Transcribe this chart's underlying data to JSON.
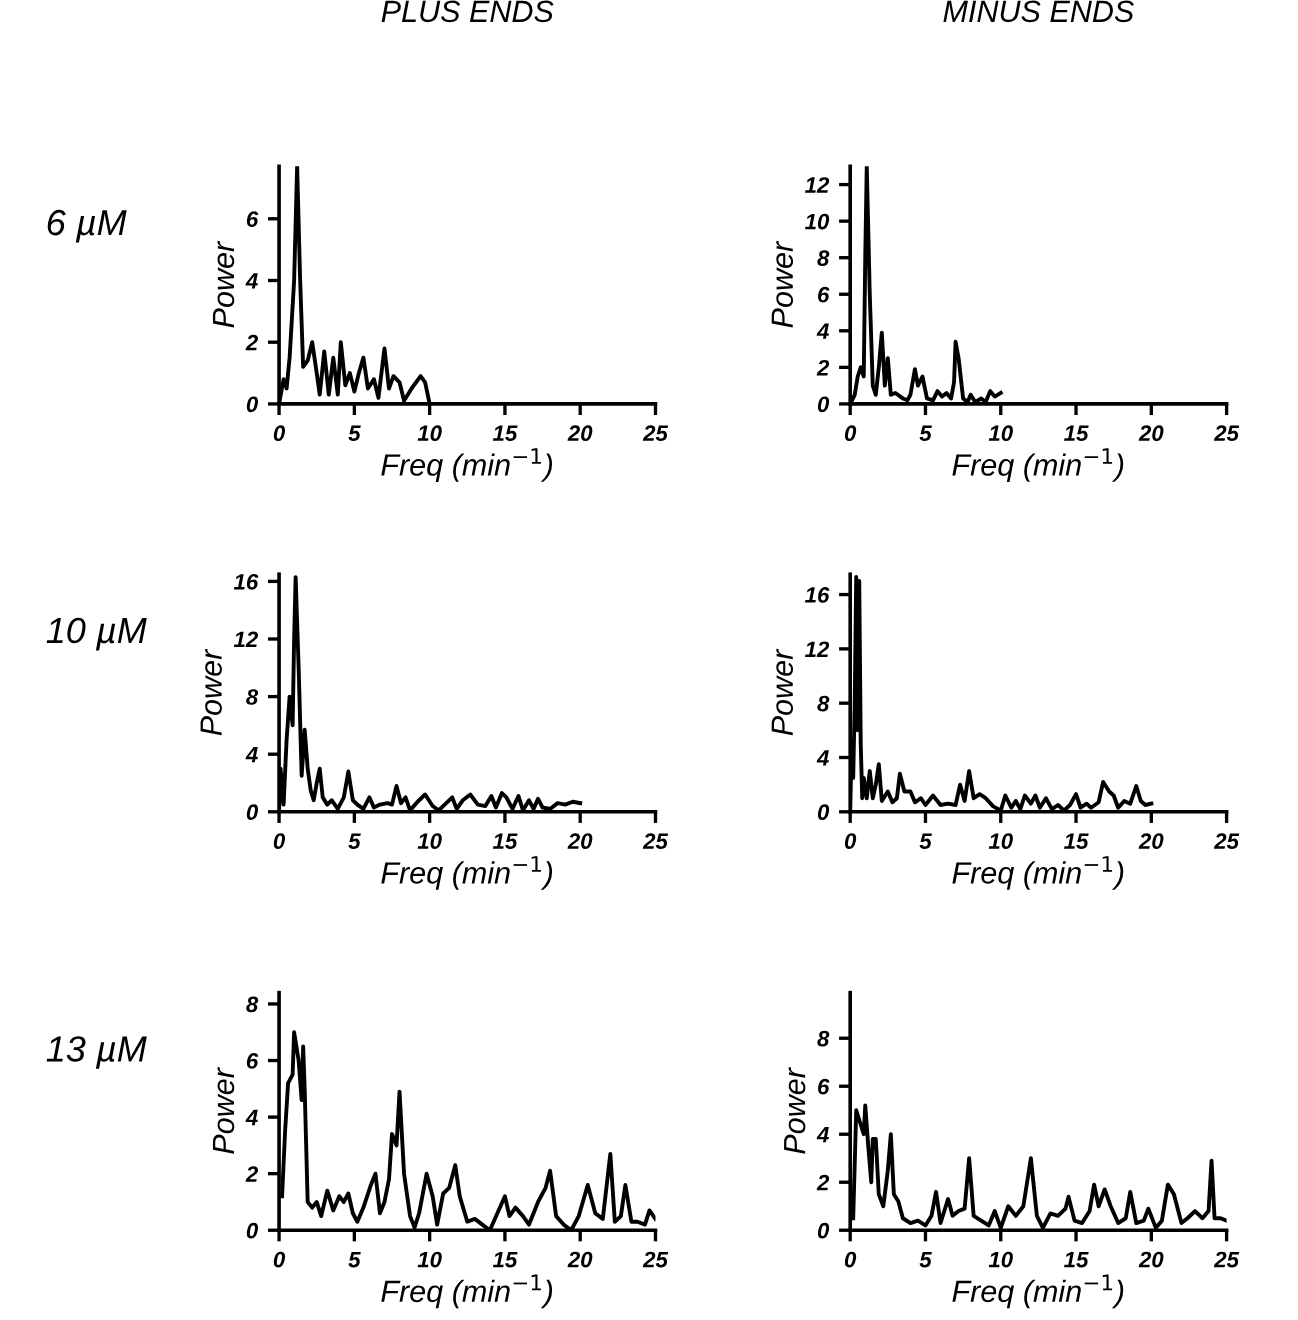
{
  "chart_data": [
    {
      "type": "line",
      "title": "PLUS ENDS",
      "annotations": [
        "6 µM"
      ],
      "xlabel": "Freq (min$^{−1}$)",
      "ylabel": "Power",
      "xlim": [
        0,
        25
      ],
      "xticks": [
        0,
        5,
        10,
        15,
        20,
        25
      ],
      "ylim": [
        0,
        7.7
      ],
      "yticks": [
        0,
        2,
        4,
        6
      ],
      "series": [
        {
          "color": "#000000",
          "x": [
            0,
            0.3,
            0.5,
            0.7,
            1.0,
            1.2,
            1.4,
            1.6,
            1.9,
            2.2,
            2.5,
            2.7,
            3.0,
            3.3,
            3.6,
            3.9,
            4.1,
            4.4,
            4.7,
            5.0,
            5.3,
            5.6,
            5.9,
            6.3,
            6.6,
            7.0,
            7.3,
            7.6,
            8.0,
            8.3,
            8.8,
            9.4,
            9.7,
            10.0
          ],
          "values": [
            0,
            0.8,
            0.5,
            1.5,
            4,
            7.7,
            4,
            1.2,
            1.4,
            2.0,
            1.0,
            0.3,
            1.7,
            0.3,
            1.5,
            0.3,
            2.0,
            0.6,
            1.0,
            0.4,
            1.0,
            1.5,
            0.5,
            0.8,
            0.2,
            1.8,
            0.5,
            0.9,
            0.7,
            0.1,
            0.5,
            0.9,
            0.7,
            0
          ]
        }
      ]
    },
    {
      "type": "line",
      "title": "MINUS ENDS",
      "xlabel": "Freq (min$^{−1}$)",
      "ylabel": "Power",
      "xlim": [
        0,
        25
      ],
      "xticks": [
        0,
        5,
        10,
        15,
        20,
        25
      ],
      "ylim": [
        0,
        13
      ],
      "yticks": [
        0,
        2,
        4,
        6,
        8,
        10,
        12
      ],
      "series": [
        {
          "color": "#000000",
          "x": [
            0,
            0.3,
            0.5,
            0.7,
            0.9,
            1.0,
            1.1,
            1.3,
            1.5,
            1.7,
            1.9,
            2.1,
            2.3,
            2.5,
            2.7,
            3.0,
            3.5,
            3.8,
            4.0,
            4.3,
            4.5,
            4.8,
            5.1,
            5.5,
            5.8,
            6.1,
            6.4,
            6.7,
            6.9,
            7.0,
            7.2,
            7.5,
            7.8,
            8.0,
            8.3,
            8.7,
            9.0,
            9.3,
            9.6,
            10.0
          ],
          "values": [
            0,
            0.5,
            1.5,
            2,
            1.5,
            8,
            13,
            6,
            1,
            0.5,
            2,
            3.9,
            1,
            2.5,
            0.5,
            0.6,
            0.3,
            0.2,
            0.5,
            1.9,
            1.0,
            1.5,
            0.3,
            0.2,
            0.7,
            0.4,
            0.6,
            0.3,
            1.2,
            3.4,
            2.5,
            0.3,
            0.1,
            0.5,
            0.1,
            0.3,
            0.1,
            0.7,
            0.4,
            0.6
          ]
        }
      ]
    },
    {
      "type": "line",
      "annotations": [
        "10 µM"
      ],
      "xlabel": "Freq (min$^{−1}$)",
      "ylabel": "Power",
      "xlim": [
        0,
        25
      ],
      "xticks": [
        0,
        5,
        10,
        15,
        20,
        25
      ],
      "ylim": [
        0,
        16.5
      ],
      "yticks": [
        0,
        4,
        8,
        12,
        16
      ],
      "series": [
        {
          "color": "#000000",
          "x": [
            0,
            0.1,
            0.3,
            0.5,
            0.7,
            0.9,
            1.0,
            1.1,
            1.3,
            1.5,
            1.7,
            1.9,
            2.1,
            2.3,
            2.5,
            2.7,
            2.9,
            3.2,
            3.5,
            3.9,
            4.3,
            4.6,
            4.9,
            5.2,
            5.6,
            6.0,
            6.3,
            6.7,
            7.2,
            7.5,
            7.8,
            8.1,
            8.4,
            8.7,
            9.2,
            9.7,
            10.2,
            10.6,
            11.0,
            11.5,
            11.8,
            12.2,
            12.7,
            13.2,
            13.7,
            14.1,
            14.4,
            14.8,
            15.1,
            15.5,
            15.9,
            16.2,
            16.6,
            16.9,
            17.2,
            17.5,
            18.0,
            18.5,
            19.0,
            19.5,
            20.0
          ],
          "values": [
            0,
            3,
            0.5,
            5,
            8,
            6,
            12,
            16.3,
            10,
            2.5,
            5.7,
            3,
            1.5,
            0.8,
            2,
            3,
            1,
            0.5,
            0.8,
            0.2,
            1,
            2.8,
            0.8,
            0.5,
            0.2,
            1.0,
            0.3,
            0.5,
            0.6,
            0.5,
            1.8,
            0.6,
            1.0,
            0.1,
            0.7,
            1.2,
            0.4,
            0.1,
            0.5,
            1.0,
            0.2,
            0.8,
            1.2,
            0.5,
            0.4,
            1.1,
            0.3,
            1.3,
            1.0,
            0.2,
            1.1,
            0.1,
            0.8,
            0.2,
            0.9,
            0.3,
            0.2,
            0.6,
            0.5,
            0.7,
            0.6
          ]
        }
      ]
    },
    {
      "type": "line",
      "xlabel": "Freq (min$^{−1}$)",
      "ylabel": "Power",
      "xlim": [
        0,
        25
      ],
      "xticks": [
        0,
        5,
        10,
        15,
        20,
        25
      ],
      "ylim": [
        0,
        17.5
      ],
      "yticks": [
        0,
        4,
        8,
        12,
        16
      ],
      "series": [
        {
          "color": "#000000",
          "x": [
            0,
            0.1,
            0.2,
            0.3,
            0.4,
            0.5,
            0.6,
            0.7,
            0.8,
            0.9,
            1.1,
            1.3,
            1.5,
            1.7,
            1.9,
            2.1,
            2.5,
            2.8,
            3.1,
            3.3,
            3.6,
            4.0,
            4.3,
            4.7,
            5.0,
            5.5,
            6.0,
            6.5,
            7.0,
            7.3,
            7.6,
            7.9,
            8.2,
            8.6,
            9.0,
            9.5,
            10.0,
            10.3,
            10.7,
            11.0,
            11.3,
            11.6,
            12.0,
            12.3,
            12.6,
            13.0,
            13.4,
            13.8,
            14.2,
            14.6,
            15.0,
            15.3,
            15.7,
            16.0,
            16.5,
            16.8,
            17.2,
            17.5,
            17.8,
            18.2,
            18.6,
            19.0,
            19.3,
            19.6,
            20.0
          ],
          "values": [
            0,
            5,
            2.5,
            8,
            17.3,
            6,
            17,
            5,
            1,
            2.5,
            1.0,
            3,
            1.0,
            2,
            3.5,
            0.8,
            1.5,
            0.7,
            1.0,
            2.8,
            1.5,
            1.5,
            0.7,
            1.0,
            0.5,
            1.2,
            0.5,
            0.6,
            0.5,
            2.0,
            0.8,
            3.0,
            1.0,
            1.3,
            1.0,
            0.4,
            0.1,
            1.2,
            0.3,
            0.8,
            0.2,
            1.2,
            0.6,
            1.2,
            0.3,
            1.0,
            0.2,
            0.5,
            0.1,
            0.5,
            1.3,
            0.3,
            0.6,
            0.3,
            0.7,
            2.2,
            1.5,
            1.2,
            0.3,
            0.8,
            0.6,
            1.9,
            0.8,
            0.5,
            0.6
          ]
        }
      ]
    },
    {
      "type": "line",
      "annotations": [
        "13 µM"
      ],
      "xlabel": "Freq (min$^{−1}$)",
      "ylabel": "Power",
      "xlim": [
        0,
        25
      ],
      "xticks": [
        0,
        5,
        10,
        15,
        20,
        25
      ],
      "ylim": [
        0,
        8.4
      ],
      "yticks": [
        0,
        2,
        4,
        6,
        8
      ],
      "series": [
        {
          "color": "#000000",
          "x": [
            0.2,
            0.4,
            0.6,
            0.9,
            1.0,
            1.3,
            1.5,
            1.6,
            1.7,
            1.9,
            2.2,
            2.5,
            2.8,
            3.2,
            3.6,
            4.0,
            4.3,
            4.6,
            4.9,
            5.2,
            5.6,
            6.1,
            6.4,
            6.7,
            7.0,
            7.3,
            7.5,
            7.8,
            8.0,
            8.3,
            8.7,
            9.0,
            9.3,
            9.8,
            10.2,
            10.5,
            10.9,
            11.3,
            11.7,
            12.0,
            12.5,
            13.0,
            13.5,
            14.0,
            14.5,
            15.0,
            15.3,
            15.7,
            16.2,
            16.6,
            17.2,
            17.7,
            18.0,
            18.4,
            18.9,
            19.4,
            19.9,
            20.5,
            21.0,
            21.5,
            22.0,
            22.3,
            22.7,
            23.0,
            23.4,
            23.8,
            24.3,
            24.6,
            25.0
          ],
          "values": [
            1.2,
            3.5,
            5.2,
            5.5,
            7,
            6,
            4.6,
            6.5,
            5,
            1.0,
            0.8,
            1.0,
            0.5,
            1.4,
            0.7,
            1.2,
            1.0,
            1.3,
            0.6,
            0.3,
            0.8,
            1.6,
            2.0,
            0.6,
            1.0,
            1.8,
            3.4,
            3.0,
            4.9,
            2.0,
            0.5,
            0.1,
            0.6,
            2.0,
            1.2,
            0.2,
            1.3,
            1.5,
            2.3,
            1.2,
            0.3,
            0.4,
            0.2,
            0.0,
            0.6,
            1.2,
            0.5,
            0.8,
            0.5,
            0.2,
            1.0,
            1.5,
            2.1,
            0.5,
            0.2,
            0.0,
            0.5,
            1.6,
            0.6,
            0.4,
            2.7,
            0.3,
            0.5,
            1.6,
            0.3,
            0.3,
            0.2,
            0.7,
            0.4
          ]
        }
      ]
    },
    {
      "type": "line",
      "xlabel": "Freq (min$^{−1}$)",
      "ylabel": "Power",
      "xlim": [
        0,
        25
      ],
      "xticks": [
        0,
        5,
        10,
        15,
        20,
        25
      ],
      "ylim": [
        0,
        9.9
      ],
      "yticks": [
        0,
        2,
        4,
        6,
        8
      ],
      "series": [
        {
          "color": "#000000",
          "x": [
            0.2,
            0.4,
            0.9,
            1.0,
            1.2,
            1.4,
            1.5,
            1.7,
            1.9,
            2.2,
            2.5,
            2.7,
            2.9,
            3.2,
            3.5,
            4.0,
            4.5,
            5.0,
            5.4,
            5.7,
            6.0,
            6.5,
            6.8,
            7.2,
            7.6,
            7.9,
            8.2,
            8.7,
            9.2,
            9.6,
            10.0,
            10.5,
            11.0,
            11.5,
            12.0,
            12.4,
            12.8,
            13.3,
            13.8,
            14.3,
            14.5,
            14.9,
            15.4,
            15.9,
            16.2,
            16.5,
            16.9,
            17.3,
            17.8,
            18.3,
            18.6,
            19.0,
            19.5,
            19.8,
            20.3,
            20.7,
            21.1,
            21.5,
            22.0,
            22.4,
            22.9,
            23.4,
            23.8,
            24.0,
            24.2,
            24.6,
            25.0
          ],
          "values": [
            0.5,
            5,
            4,
            5.2,
            3.5,
            2,
            3.8,
            3.8,
            1.5,
            1.0,
            2.5,
            4.0,
            1.5,
            1.2,
            0.5,
            0.3,
            0.4,
            0.2,
            0.6,
            1.6,
            0.3,
            1.3,
            0.6,
            0.8,
            0.9,
            3.0,
            0.6,
            0.4,
            0.2,
            0.8,
            0.1,
            1.0,
            0.6,
            1.0,
            3.0,
            0.6,
            0.1,
            0.7,
            0.6,
            0.9,
            1.4,
            0.4,
            0.3,
            0.8,
            1.9,
            1.0,
            1.7,
            1.0,
            0.3,
            0.5,
            1.6,
            0.3,
            0.4,
            0.9,
            0.1,
            0.4,
            1.9,
            1.5,
            0.3,
            0.5,
            0.8,
            0.5,
            0.8,
            2.9,
            0.5,
            0.5,
            0.4
          ]
        }
      ]
    }
  ]
}
